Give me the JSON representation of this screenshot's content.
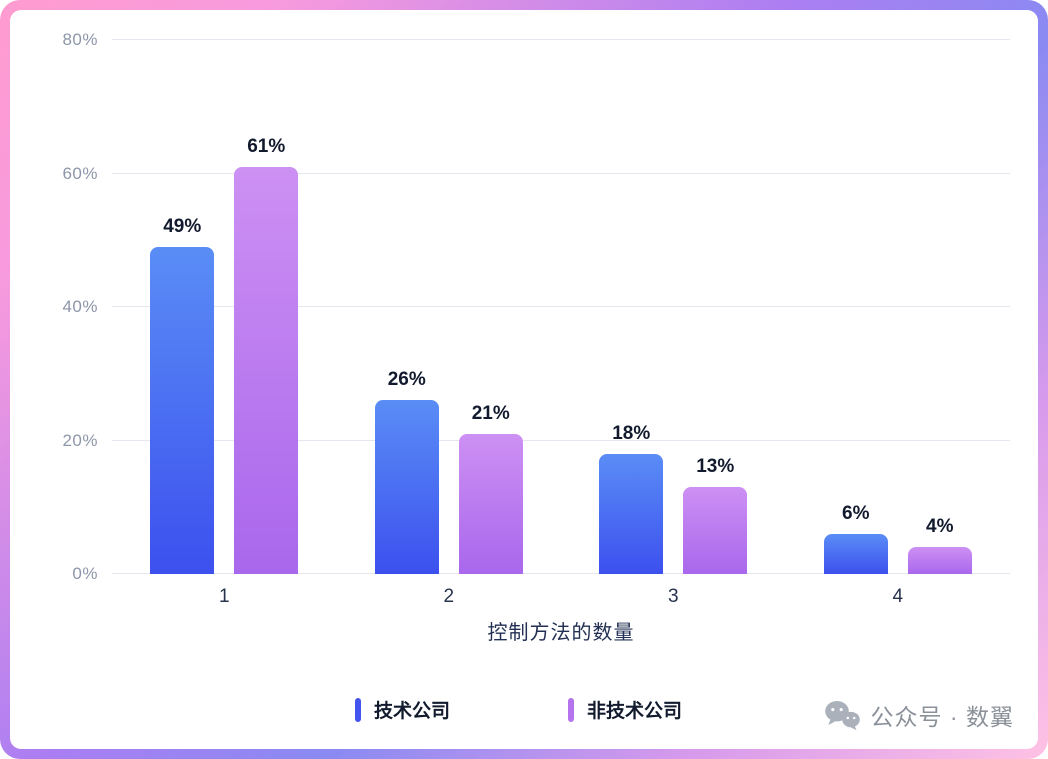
{
  "chart_data": {
    "type": "bar",
    "categories": [
      "1",
      "2",
      "3",
      "4"
    ],
    "series": [
      {
        "name": "技术公司",
        "values": [
          49,
          26,
          18,
          6
        ],
        "value_labels": [
          "49%",
          "26%",
          "18%",
          "6%"
        ],
        "color_top": "#5a8df6",
        "color_bottom": "#3c50ee",
        "legend_color": "#4355ee"
      },
      {
        "name": "非技术公司",
        "values": [
          61,
          21,
          13,
          4
        ],
        "value_labels": [
          "61%",
          "21%",
          "13%",
          "4%"
        ],
        "color_top": "#cd90f3",
        "color_bottom": "#a967ec",
        "legend_color": "#b673ee"
      }
    ],
    "title": "",
    "xlabel": "控制方法的数量",
    "ylabel": "",
    "ylim": [
      0,
      80
    ],
    "yticks": [
      "0%",
      "20%",
      "40%",
      "60%",
      "80%"
    ],
    "grid": true,
    "legend_position": "bottom"
  },
  "watermark": {
    "icon": "wechat-icon",
    "text": "公众号 · 数翼"
  }
}
